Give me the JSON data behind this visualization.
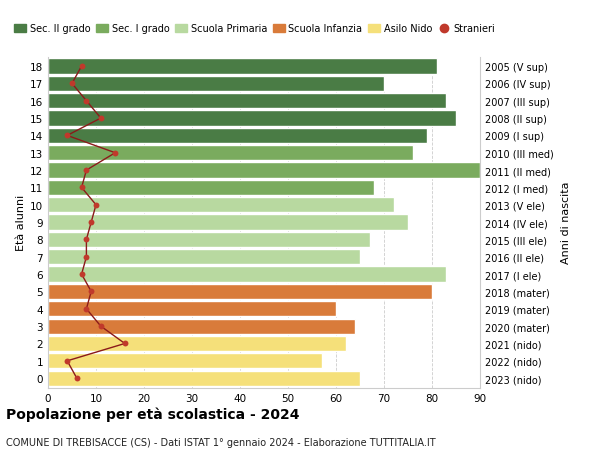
{
  "ages": [
    18,
    17,
    16,
    15,
    14,
    13,
    12,
    11,
    10,
    9,
    8,
    7,
    6,
    5,
    4,
    3,
    2,
    1,
    0
  ],
  "right_labels": [
    "2005 (V sup)",
    "2006 (IV sup)",
    "2007 (III sup)",
    "2008 (II sup)",
    "2009 (I sup)",
    "2010 (III med)",
    "2011 (II med)",
    "2012 (I med)",
    "2013 (V ele)",
    "2014 (IV ele)",
    "2015 (III ele)",
    "2016 (II ele)",
    "2017 (I ele)",
    "2018 (mater)",
    "2019 (mater)",
    "2020 (mater)",
    "2021 (nido)",
    "2022 (nido)",
    "2023 (nido)"
  ],
  "bar_values": [
    81,
    70,
    83,
    85,
    79,
    76,
    90,
    68,
    72,
    75,
    67,
    65,
    83,
    80,
    60,
    64,
    62,
    57,
    65
  ],
  "bar_colors": [
    "#4a7c45",
    "#4a7c45",
    "#4a7c45",
    "#4a7c45",
    "#4a7c45",
    "#7aab5e",
    "#7aab5e",
    "#7aab5e",
    "#b8d9a0",
    "#b8d9a0",
    "#b8d9a0",
    "#b8d9a0",
    "#b8d9a0",
    "#d97b3a",
    "#d97b3a",
    "#d97b3a",
    "#f5e07a",
    "#f5e07a",
    "#f5e07a"
  ],
  "stranieri_values": [
    7,
    5,
    8,
    11,
    4,
    14,
    8,
    7,
    10,
    9,
    8,
    8,
    7,
    9,
    8,
    11,
    16,
    4,
    6
  ],
  "stranieri_color": "#c0392b",
  "line_color": "#8b1a1a",
  "title": "Popolazione per età scolastica - 2024",
  "subtitle": "COMUNE DI TREBISACCE (CS) - Dati ISTAT 1° gennaio 2024 - Elaborazione TUTTITALIA.IT",
  "ylabel_left": "Età alunni",
  "ylabel_right": "Anni di nascita",
  "xlim": [
    0,
    90
  ],
  "xticks": [
    0,
    10,
    20,
    30,
    40,
    50,
    60,
    70,
    80,
    90
  ],
  "legend_items": [
    {
      "label": "Sec. II grado",
      "color": "#4a7c45"
    },
    {
      "label": "Sec. I grado",
      "color": "#7aab5e"
    },
    {
      "label": "Scuola Primaria",
      "color": "#b8d9a0"
    },
    {
      "label": "Scuola Infanzia",
      "color": "#d97b3a"
    },
    {
      "label": "Asilo Nido",
      "color": "#f5e07a"
    },
    {
      "label": "Stranieri",
      "color": "#c0392b"
    }
  ],
  "background_color": "#ffffff",
  "grid_color": "#cccccc"
}
